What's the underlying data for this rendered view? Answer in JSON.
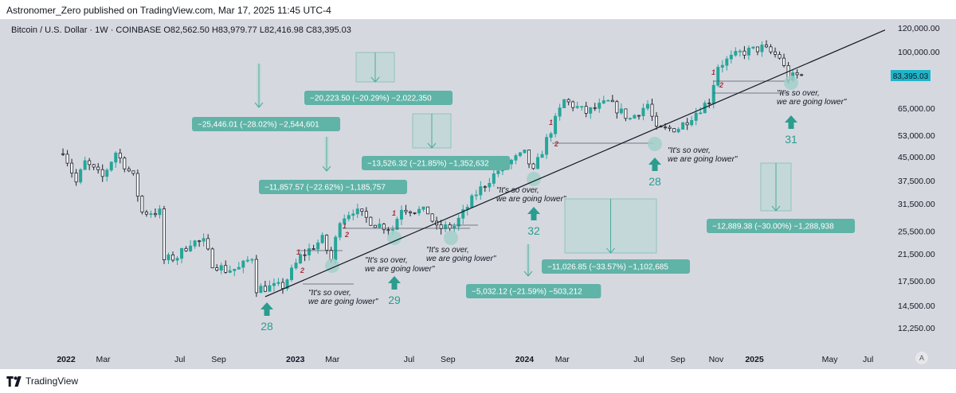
{
  "publisher": "Astronomer_Zero published on TradingView.com, Mar 17, 2025 11:45 UTC-4",
  "symbol": {
    "name": "Bitcoin / U.S. Dollar · 1W · COINBASE",
    "open": "O82,562.50",
    "high": "H83,979.77",
    "low": "L82,416.98",
    "close": "C83,395.03"
  },
  "footer": {
    "brand": "TradingView",
    "a_label": "A"
  },
  "colors": {
    "up": "#26a69a",
    "down": "#1e2229",
    "background": "#d6d8e0",
    "accent": "#2a9d8f"
  },
  "chart_data": {
    "type": "candlestick",
    "y_scale": "log",
    "ylim": [
      10500,
      130000
    ],
    "y_ticks": [
      "120,000.00",
      "100,000.00",
      "83,395.03",
      "65,000.00",
      "53,000.00",
      "45,000.00",
      "37,500.00",
      "31,500.00",
      "25,500.00",
      "21,500.00",
      "17,500.00",
      "14,500.00",
      "12,250.00"
    ],
    "y_tick_values": [
      120000,
      100000,
      83395.03,
      65000,
      53000,
      45000,
      37500,
      31500,
      25500,
      21500,
      17500,
      14500,
      12250
    ],
    "last_price": "83,395.03",
    "x_ticks": [
      "2022",
      "Mar",
      "Jul",
      "Sep",
      "2023",
      "Mar",
      "Jul",
      "Sep",
      "2024",
      "Mar",
      "Jul",
      "Sep",
      "Nov",
      "2025",
      "May",
      "Jul"
    ],
    "x_tick_dates": [
      "2022-01",
      "2022-03",
      "2022-07",
      "2022-09",
      "2023-01",
      "2023-03",
      "2023-07",
      "2023-09",
      "2024-01",
      "2024-03",
      "2024-07",
      "2024-09",
      "2024-11",
      "2025-01",
      "2025-05",
      "2025-07"
    ],
    "price_path": [
      {
        "date": "2021-12-27",
        "price": 46000
      },
      {
        "date": "2022-01-03",
        "price": 47500
      },
      {
        "date": "2022-01-24",
        "price": 37000
      },
      {
        "date": "2022-02-07",
        "price": 43000
      },
      {
        "date": "2022-03-07",
        "price": 38500
      },
      {
        "date": "2022-03-28",
        "price": 46500
      },
      {
        "date": "2022-04-25",
        "price": 38500
      },
      {
        "date": "2022-05-09",
        "price": 29500
      },
      {
        "date": "2022-06-06",
        "price": 29500
      },
      {
        "date": "2022-06-13",
        "price": 20500
      },
      {
        "date": "2022-07-04",
        "price": 21000
      },
      {
        "date": "2022-07-25",
        "price": 23500
      },
      {
        "date": "2022-08-15",
        "price": 23500
      },
      {
        "date": "2022-08-29",
        "price": 20000
      },
      {
        "date": "2022-09-19",
        "price": 19000
      },
      {
        "date": "2022-10-10",
        "price": 19200
      },
      {
        "date": "2022-10-31",
        "price": 21000
      },
      {
        "date": "2022-11-07",
        "price": 16500
      },
      {
        "date": "2022-12-19",
        "price": 16800
      },
      {
        "date": "2023-01-16",
        "price": 21000
      },
      {
        "date": "2023-02-20",
        "price": 24000
      },
      {
        "date": "2023-03-06",
        "price": 20500
      },
      {
        "date": "2023-03-20",
        "price": 28000
      },
      {
        "date": "2023-04-10",
        "price": 30000
      },
      {
        "date": "2023-05-15",
        "price": 27000
      },
      {
        "date": "2023-06-12",
        "price": 26000
      },
      {
        "date": "2023-06-26",
        "price": 30500
      },
      {
        "date": "2023-08-07",
        "price": 29500
      },
      {
        "date": "2023-08-21",
        "price": 26000
      },
      {
        "date": "2023-09-18",
        "price": 26500
      },
      {
        "date": "2023-10-23",
        "price": 34000
      },
      {
        "date": "2023-12-04",
        "price": 42000
      },
      {
        "date": "2024-01-08",
        "price": 46000
      },
      {
        "date": "2024-01-22",
        "price": 40000
      },
      {
        "date": "2024-02-12",
        "price": 51000
      },
      {
        "date": "2024-03-11",
        "price": 69000
      },
      {
        "date": "2024-04-15",
        "price": 63000
      },
      {
        "date": "2024-05-20",
        "price": 68000
      },
      {
        "date": "2024-06-24",
        "price": 60000
      },
      {
        "date": "2024-07-22",
        "price": 67000
      },
      {
        "date": "2024-08-05",
        "price": 55000
      },
      {
        "date": "2024-09-09",
        "price": 56000
      },
      {
        "date": "2024-10-28",
        "price": 69000
      },
      {
        "date": "2024-11-11",
        "price": 90000
      },
      {
        "date": "2024-12-16",
        "price": 99000
      },
      {
        "date": "2025-01-20",
        "price": 103000
      },
      {
        "date": "2025-02-17",
        "price": 96000
      },
      {
        "date": "2025-03-03",
        "price": 82000
      },
      {
        "date": "2025-03-17",
        "price": 83395.03
      }
    ],
    "trendline": [
      {
        "date": "2022-11-14",
        "price": 15500
      },
      {
        "date": "2025-07-28",
        "price": 118000
      }
    ],
    "measure_labels": [
      {
        "text": "−25,446.01 (−28.02%) −2,544,601"
      },
      {
        "text": "−20,223.50 (−20.29%) −2,022,350"
      },
      {
        "text": "−11,857.57 (−22.62%) −1,185,757"
      },
      {
        "text": "−13,526.32 (−21.85%) −1,352,632"
      },
      {
        "text": "−11,026.85 (−33.57%) −1,102,685"
      },
      {
        "text": "−5,032.12 (−21.59%) −503,212"
      },
      {
        "text": "−12,889.38 (−30.00%) −1,288,938"
      }
    ],
    "quote": "\"It's so over, we are going lower\"",
    "quote_lines": [
      "\"It's so over,",
      "we are going lower\""
    ],
    "arrow_numbers": [
      "28",
      "29",
      "32",
      "28",
      "31"
    ],
    "wave_marks": [
      "1",
      "2"
    ]
  }
}
